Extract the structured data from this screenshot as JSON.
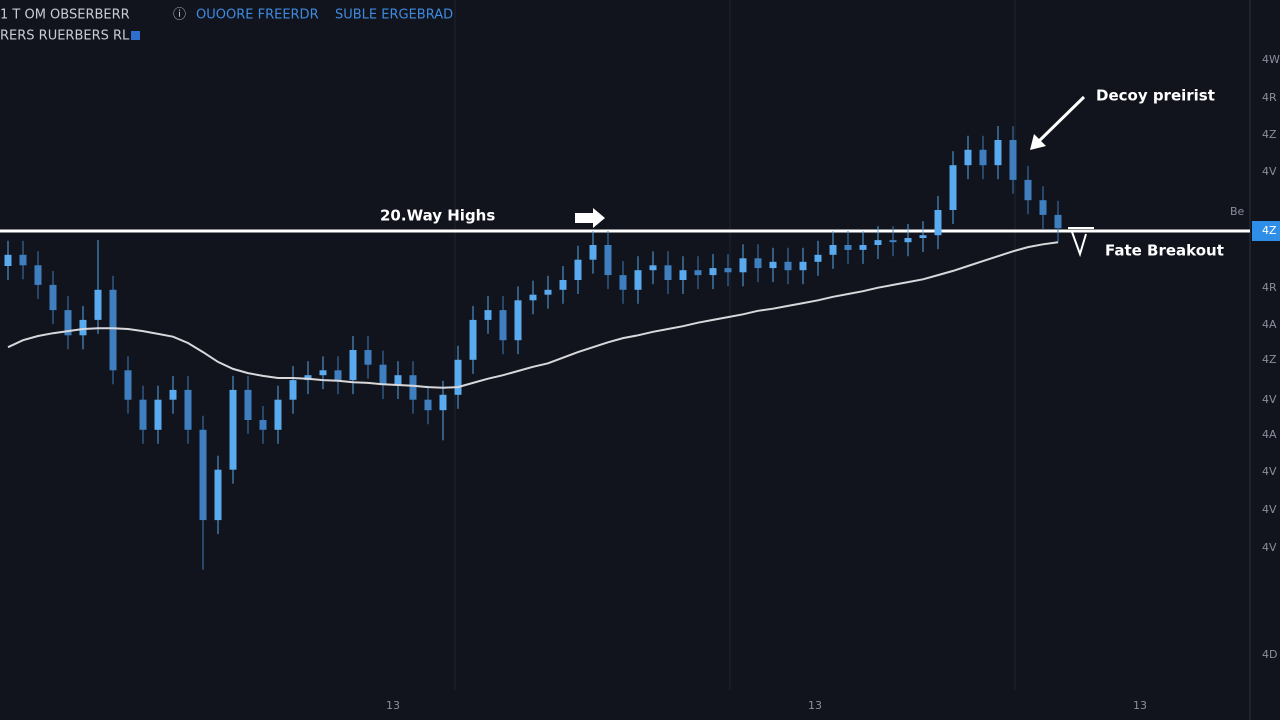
{
  "chart_data": {
    "type": "candlestick",
    "header": [
      "1 T OM OBSERBERR",
      "ⓘ",
      "OUOORE FREERDR",
      "SUBLE ERGEBRAD"
    ],
    "subheader": "RERS RUERBERS RL",
    "annotations": {
      "resistance_label": "20.Way Highs",
      "peak_label": "Decoy preirist",
      "breakout_label": "Fate Breakout"
    },
    "price_axis_labels": [
      "4W",
      "4R",
      "4Z",
      "4V",
      "4R",
      "4A",
      "4Z",
      "4V",
      "4A",
      "4V",
      "4V",
      "4V",
      "4D"
    ],
    "price_tag": "4Z",
    "side_label": "Be",
    "time_axis_labels": [
      "13",
      "13",
      "13"
    ],
    "ylim": [
      0,
      100
    ],
    "resistance": 67,
    "color_up": "#5aaaf0",
    "color_down": "#3f7fc0",
    "ma_color": "#d8d8dc",
    "open": [
      62,
      63.6,
      62.1,
      59.3,
      55.7,
      52.1,
      54.3,
      58.6,
      47.1,
      42.9,
      38.6,
      42.9,
      44.3,
      38.6,
      25.7,
      32.9,
      44.3,
      40,
      38.6,
      42.9,
      45.7,
      46.4,
      47.1,
      45.7,
      50,
      47.9,
      45,
      46.4,
      42.9,
      41.4,
      43.6,
      48.6,
      54.3,
      55.7,
      51.4,
      57.1,
      57.9,
      58.6,
      60,
      62.9,
      65,
      60.7,
      58.6,
      61.4,
      62.1,
      60,
      61.4,
      60.7,
      61.7,
      61.1,
      63.1,
      61.7,
      62.6,
      61.4,
      62.6,
      63.6,
      65,
      64.3,
      65,
      65.7,
      65.4,
      66,
      66.4,
      70,
      76.4,
      78.6,
      76.4,
      80,
      74.3,
      71.4,
      69.3
    ],
    "close": [
      63.6,
      62.1,
      59.3,
      55.7,
      52.1,
      54.3,
      58.6,
      47.1,
      42.9,
      38.6,
      42.9,
      44.3,
      38.6,
      25.7,
      32.9,
      44.3,
      40,
      38.6,
      42.9,
      45.7,
      46.4,
      47.1,
      45.7,
      50,
      47.9,
      45,
      46.4,
      42.9,
      41.4,
      43.6,
      48.6,
      54.3,
      55.7,
      51.4,
      57.1,
      57.9,
      58.6,
      60,
      62.9,
      65,
      60.7,
      58.6,
      61.4,
      62.1,
      60,
      61.4,
      60.7,
      61.7,
      61.1,
      63.1,
      61.7,
      62.6,
      61.4,
      62.6,
      63.6,
      65,
      64.3,
      65,
      65.7,
      65.4,
      66,
      66.4,
      70,
      76.4,
      78.6,
      76.4,
      80,
      74.3,
      71.4,
      69.3,
      67.4
    ],
    "high": [
      65.6,
      65.6,
      64.1,
      61.3,
      57.7,
      56.3,
      65.7,
      60.6,
      49.1,
      44.9,
      44.9,
      46.3,
      46.3,
      40.6,
      34.9,
      46.3,
      46.3,
      42,
      44.9,
      47.7,
      48.4,
      49.1,
      49.1,
      52,
      52,
      49.9,
      48.4,
      48.4,
      44.9,
      45.6,
      50.6,
      56.3,
      57.7,
      57.7,
      59.1,
      59.9,
      60.6,
      62,
      64.9,
      67,
      67,
      62.7,
      63.4,
      64.1,
      64.1,
      63.4,
      63.4,
      63.7,
      63.7,
      65.1,
      65.1,
      64.6,
      64.6,
      64.6,
      65.6,
      67,
      67,
      67,
      67.7,
      67.7,
      68,
      68.4,
      72,
      78.4,
      80.6,
      80.6,
      82,
      82,
      76.3,
      73.4,
      71.3
    ],
    "low": [
      60,
      60.1,
      57.3,
      53.7,
      50.1,
      50.1,
      52.3,
      45.1,
      40.9,
      36.6,
      36.6,
      40.9,
      36.6,
      18.6,
      23.7,
      30.9,
      38,
      36.6,
      36.6,
      40.9,
      43.7,
      44.4,
      43.7,
      43.7,
      45.9,
      43,
      43,
      40.9,
      39.4,
      37.1,
      41.6,
      46.6,
      52.3,
      49.4,
      49.4,
      55.1,
      55.9,
      56.6,
      58,
      60.9,
      58.7,
      56.6,
      56.6,
      59.4,
      58,
      58,
      58.7,
      58.7,
      59.1,
      59.1,
      59.7,
      59.7,
      59.4,
      59.4,
      60.6,
      61.6,
      62.3,
      62.3,
      63,
      63.4,
      63.4,
      64,
      64.4,
      68,
      74.4,
      74.4,
      74.4,
      72.3,
      69.4,
      67.3,
      65.4
    ],
    "ma": [
      50.4,
      51.4,
      52,
      52.4,
      52.7,
      53,
      53.1,
      53.1,
      53,
      52.7,
      52.3,
      51.9,
      51,
      49.7,
      48.3,
      47.3,
      46.7,
      46.3,
      46,
      46,
      45.9,
      45.7,
      45.6,
      45.4,
      45.3,
      45.1,
      45,
      44.9,
      44.7,
      44.6,
      44.7,
      45.3,
      45.9,
      46.4,
      47,
      47.6,
      48.1,
      48.9,
      49.7,
      50.4,
      51.1,
      51.7,
      52.1,
      52.6,
      53,
      53.4,
      53.9,
      54.3,
      54.7,
      55.1,
      55.6,
      55.9,
      56.3,
      56.7,
      57.1,
      57.6,
      58,
      58.4,
      58.9,
      59.3,
      59.7,
      60.1,
      60.7,
      61.3,
      62,
      62.7,
      63.4,
      64.1,
      64.7,
      65.1,
      65.4
    ]
  }
}
